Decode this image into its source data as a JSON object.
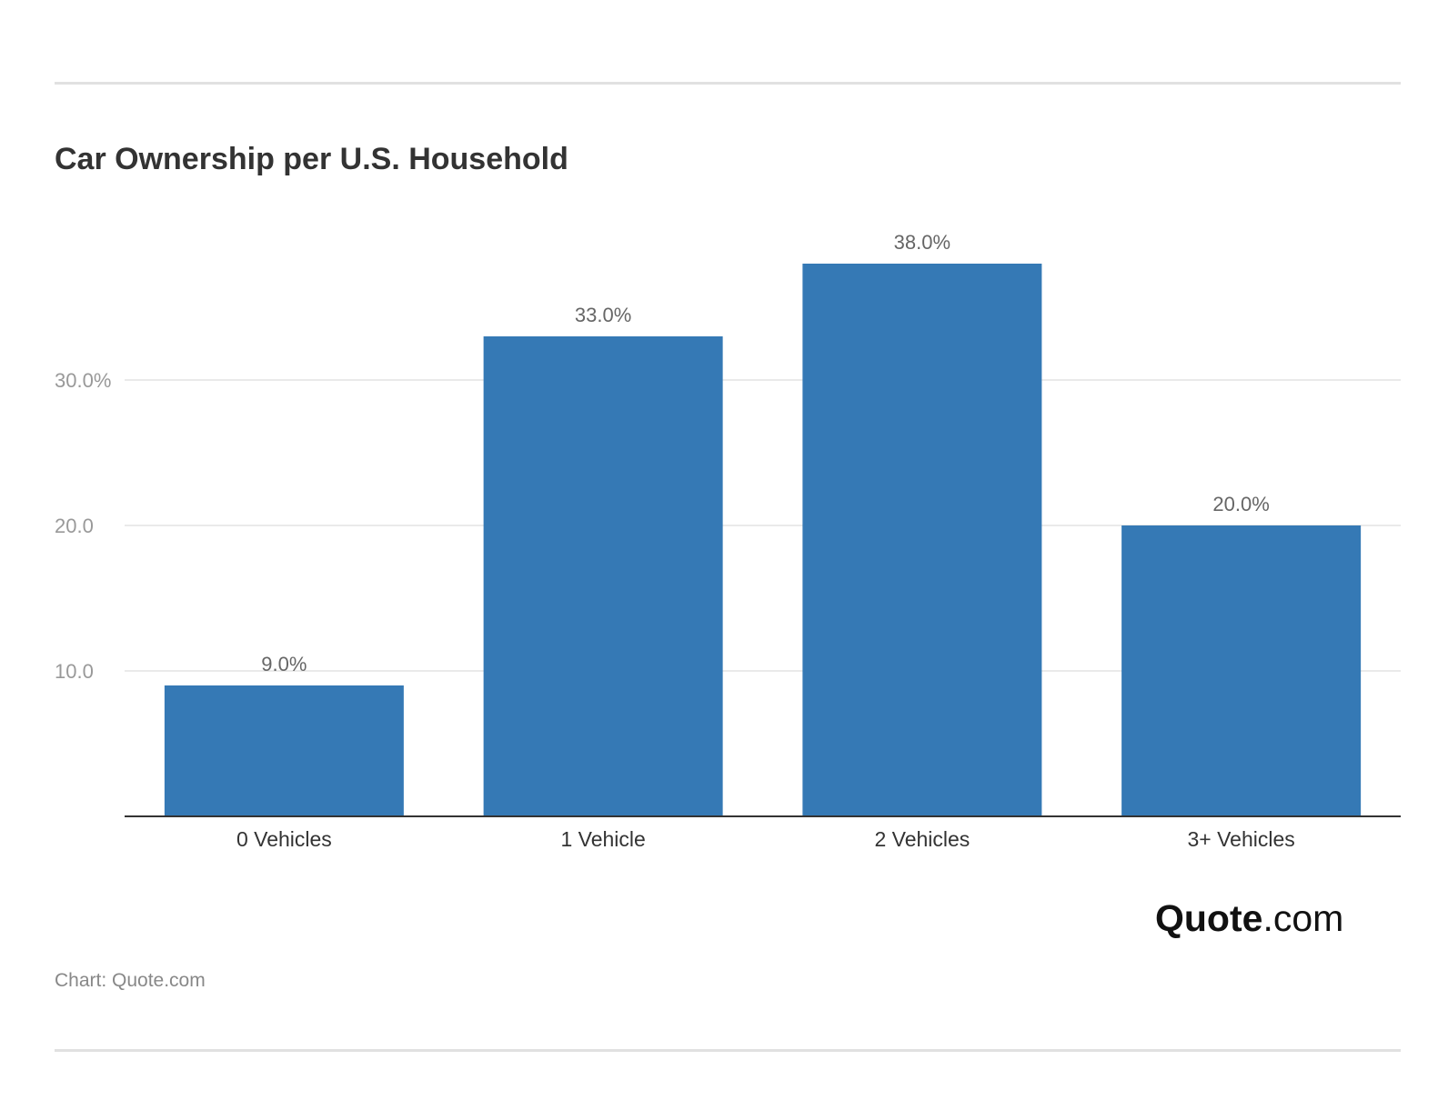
{
  "chart_data": {
    "type": "bar",
    "title": "Car Ownership per U.S. Household",
    "categories": [
      "0 Vehicles",
      "1 Vehicle",
      "2 Vehicles",
      "3+ Vehicles"
    ],
    "values": [
      9.0,
      33.0,
      38.0,
      20.0
    ],
    "value_labels": [
      "9.0%",
      "33.0%",
      "38.0%",
      "20.0%"
    ],
    "y_ticks": [
      10,
      20,
      30
    ],
    "y_tick_labels": [
      "10.0",
      "20.0",
      "30.0%"
    ],
    "ylim": [
      0,
      42
    ],
    "xlabel": "",
    "ylabel": "",
    "grid": true,
    "legend": "none",
    "bar_color": "#3579b5"
  },
  "source": "Chart: Quote.com",
  "logo": {
    "brand": "Quote",
    "tld": ".com"
  }
}
